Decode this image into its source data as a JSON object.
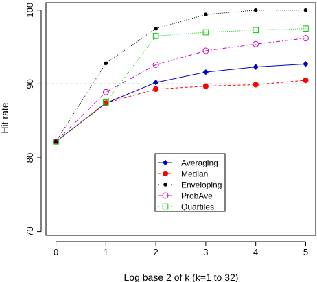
{
  "chart_data": {
    "type": "line",
    "xlabel": "Log base 2 of k (k=1 to 32)",
    "ylabel": "Hit rate",
    "x": [
      0,
      1,
      2,
      3,
      4,
      5
    ],
    "x_ticks": [
      "0",
      "1",
      "2",
      "3",
      "4",
      "5"
    ],
    "y_ticks": [
      "70",
      "80",
      "90",
      "100"
    ],
    "xlim": [
      -0.2,
      5.2
    ],
    "ylim": [
      69.5,
      101
    ],
    "reference_line": {
      "y": 90,
      "style": "dashed",
      "color": "#555555"
    },
    "legend_position": "bottom-center",
    "series": [
      {
        "name": "Averaging",
        "values": [
          82.2,
          87.4,
          90.2,
          91.6,
          92.3,
          92.7
        ],
        "color": "#0000cc",
        "marker": "diamond",
        "line": "solid"
      },
      {
        "name": "Median",
        "values": [
          82.2,
          87.4,
          89.3,
          89.7,
          89.9,
          90.5
        ],
        "color": "#ff0000",
        "marker": "filled-circle",
        "line": "dashed"
      },
      {
        "name": "Enveloping",
        "values": [
          82.2,
          92.8,
          97.5,
          99.4,
          100.0,
          100.0
        ],
        "color": "#000000",
        "marker": "small-dot",
        "line": "dotted"
      },
      {
        "name": "ProbAve",
        "values": [
          82.2,
          88.9,
          92.6,
          94.5,
          95.4,
          96.2
        ],
        "color": "#cc00cc",
        "marker": "open-circle",
        "line": "dashdot"
      },
      {
        "name": "Quartiles",
        "values": [
          82.2,
          87.5,
          96.5,
          97.0,
          97.3,
          97.5
        ],
        "color": "#00cc00",
        "marker": "open-square",
        "line": "dotted"
      }
    ]
  }
}
